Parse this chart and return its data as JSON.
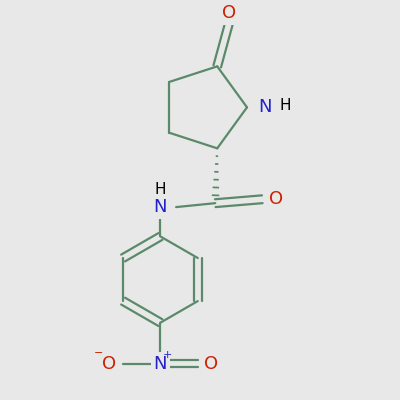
{
  "background_color": "#e8e8e8",
  "bond_color": "#5a8a6a",
  "bond_width": 1.6,
  "label_N_color": "#2222cc",
  "label_O_color": "#cc2200",
  "label_black": "#000000",
  "figsize": [
    4.0,
    4.0
  ],
  "dpi": 100,
  "font_size_atom": 13,
  "font_size_H": 11,
  "font_size_charge": 8,
  "xlim": [
    1.5,
    8.5
  ],
  "ylim": [
    0.5,
    10.5
  ]
}
